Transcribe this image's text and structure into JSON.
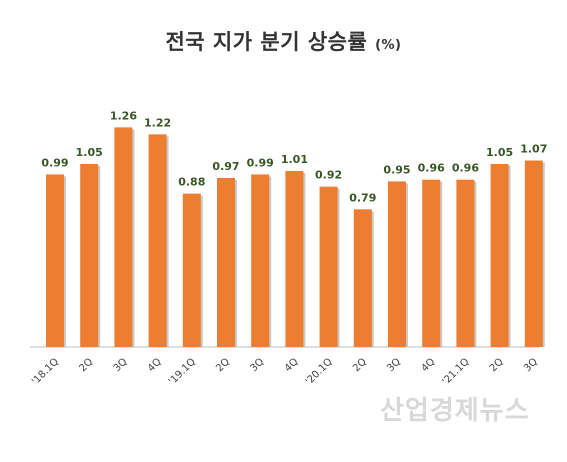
{
  "chart_data": {
    "type": "bar",
    "title": "전국 지가 분기 상승률",
    "unit": "(%)",
    "categories": [
      "'18.1Q",
      "2Q",
      "3Q",
      "4Q",
      "'19.1Q",
      "2Q",
      "3Q",
      "4Q",
      "'20.1Q",
      "2Q",
      "3Q",
      "4Q",
      "'21.1Q",
      "2Q",
      "3Q"
    ],
    "values": [
      0.99,
      1.05,
      1.26,
      1.22,
      0.88,
      0.97,
      0.99,
      1.01,
      0.92,
      0.79,
      0.95,
      0.96,
      0.96,
      1.05,
      1.07
    ],
    "value_labels": [
      "0.99",
      "1.05",
      "1.26",
      "1.22",
      "0.88",
      "0.97",
      "0.99",
      "1.01",
      "0.92",
      "0.79",
      "0.95",
      "0.96",
      "0.96",
      "1.05",
      "1.07"
    ],
    "ylim": [
      0,
      1.4
    ],
    "grid": false,
    "legend": "none",
    "bar_color": "#ED7D31",
    "label_color": "#375623"
  },
  "watermark": "산업경제뉴스"
}
